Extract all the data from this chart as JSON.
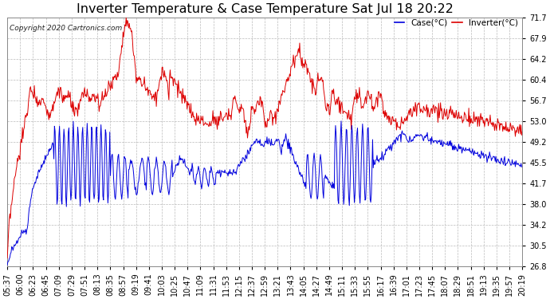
{
  "title": "Inverter Temperature & Case Temperature Sat Jul 18 20:22",
  "copyright": "Copyright 2020 Cartronics.com",
  "legend_case": "Case(°C)",
  "legend_inverter": "Inverter(°C)",
  "yticks": [
    26.8,
    30.5,
    34.2,
    38.0,
    41.7,
    45.5,
    49.2,
    53.0,
    56.7,
    60.4,
    64.2,
    67.9,
    71.7
  ],
  "ylim": [
    26.8,
    71.7
  ],
  "background_color": "#ffffff",
  "plot_bg_color": "#ffffff",
  "grid_color": "#bbbbbb",
  "case_color": "#0000dd",
  "inverter_color": "#dd0000",
  "title_fontsize": 11.5,
  "tick_fontsize": 7,
  "x_labels": [
    "05:37",
    "06:00",
    "06:23",
    "06:45",
    "07:09",
    "07:29",
    "07:51",
    "08:13",
    "08:35",
    "08:57",
    "09:19",
    "09:41",
    "10:03",
    "10:25",
    "10:47",
    "11:09",
    "11:31",
    "11:53",
    "12:15",
    "12:37",
    "12:59",
    "13:21",
    "13:43",
    "14:05",
    "14:27",
    "14:49",
    "15:11",
    "15:33",
    "15:55",
    "16:17",
    "16:39",
    "17:01",
    "17:23",
    "17:45",
    "18:07",
    "18:29",
    "18:51",
    "19:13",
    "19:35",
    "19:57",
    "20:19"
  ]
}
